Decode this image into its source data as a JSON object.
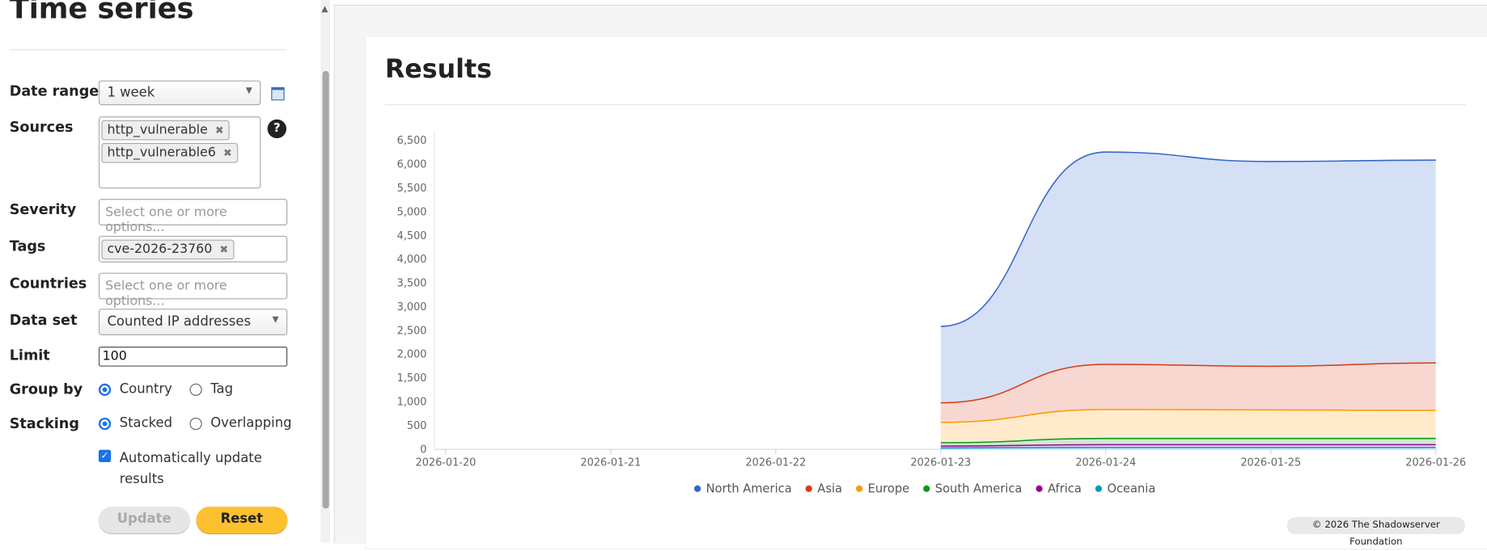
{
  "sidebar": {
    "title": "Time series",
    "fields": {
      "date_range": {
        "label": "Date range",
        "value": "1 week"
      },
      "sources": {
        "label": "Sources",
        "tags": [
          "http_vulnerable",
          "http_vulnerable6"
        ],
        "help": "?"
      },
      "severity": {
        "label": "Severity",
        "placeholder": "Select one or more options..."
      },
      "tags": {
        "label": "Tags",
        "tags": [
          "cve-2026-23760"
        ]
      },
      "countries": {
        "label": "Countries",
        "placeholder": "Select one or more options..."
      },
      "data_set": {
        "label": "Data set",
        "value": "Counted IP addresses"
      },
      "limit": {
        "label": "Limit",
        "value": "100"
      },
      "group_by": {
        "label": "Group by",
        "options": [
          "Country",
          "Tag"
        ]
      },
      "stacking": {
        "label": "Stacking",
        "options": [
          "Stacked",
          "Overlapping"
        ]
      },
      "auto_update": {
        "label": "Automatically update results"
      }
    },
    "buttons": {
      "update": "Update",
      "reset": "Reset"
    }
  },
  "results_title": "Results",
  "footer": "© 2026 The Shadowserver Foundation",
  "chart_data": {
    "type": "stacked_area",
    "x": [
      "2026-01-20",
      "2026-01-21",
      "2026-01-22",
      "2026-01-23",
      "2026-01-24",
      "2026-01-25",
      "2026-01-26"
    ],
    "series": [
      {
        "name": "North America",
        "color": "#3366cc",
        "values": [
          null,
          null,
          null,
          1610,
          4470,
          4310,
          4270
        ]
      },
      {
        "name": "Asia",
        "color": "#dc3912",
        "values": [
          null,
          null,
          null,
          410,
          950,
          920,
          1000
        ]
      },
      {
        "name": "Europe",
        "color": "#ff9900",
        "values": [
          null,
          null,
          null,
          430,
          610,
          600,
          590
        ]
      },
      {
        "name": "South America",
        "color": "#109618",
        "values": [
          null,
          null,
          null,
          70,
          130,
          130,
          130
        ]
      },
      {
        "name": "Africa",
        "color": "#990099",
        "values": [
          null,
          null,
          null,
          40,
          60,
          60,
          60
        ]
      },
      {
        "name": "Oceania",
        "color": "#0099c6",
        "values": [
          null,
          null,
          null,
          20,
          30,
          30,
          30
        ]
      }
    ],
    "ylim": [
      0,
      6500
    ],
    "yticks": [
      0,
      500,
      {
        "value": 1000,
        "label": "1,000"
      },
      {
        "value": 1500,
        "label": "1,500"
      },
      {
        "value": 2000,
        "label": "2,000"
      },
      {
        "value": 2500,
        "label": "2,500"
      },
      {
        "value": 3000,
        "label": "3,000"
      },
      {
        "value": 3500,
        "label": "3,500"
      },
      {
        "value": 4000,
        "label": "4,000"
      },
      {
        "value": 4500,
        "label": "4,500"
      },
      {
        "value": 5000,
        "label": "5,000"
      },
      {
        "value": 5500,
        "label": "5,500"
      },
      {
        "value": 6000,
        "label": "6,000"
      },
      {
        "value": 6500,
        "label": "6,500"
      }
    ],
    "grid": false,
    "legend": "bottom"
  }
}
